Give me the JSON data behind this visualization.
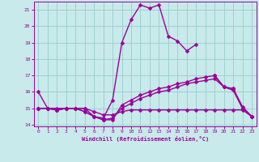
{
  "title": "",
  "xlabel": "Windchill (Refroidissement éolien,°C)",
  "x": [
    0,
    1,
    2,
    3,
    4,
    5,
    6,
    7,
    8,
    9,
    10,
    11,
    12,
    13,
    14,
    15,
    16,
    17,
    18,
    19,
    20,
    21,
    22,
    23
  ],
  "line1": [
    16,
    15,
    15,
    15,
    15,
    15,
    14.5,
    14.4,
    15.5,
    19,
    20.4,
    21.3,
    21.1,
    21.3,
    19.4,
    19.1,
    18.5,
    18.9,
    null,
    17,
    16.3,
    16.2,
    15,
    14.5
  ],
  "line2": [
    15,
    15,
    14.9,
    15,
    15,
    14.8,
    14.5,
    14.3,
    14.3,
    15.2,
    15.5,
    15.8,
    16.0,
    16.2,
    16.3,
    16.5,
    16.6,
    16.8,
    16.9,
    17.0,
    16.3,
    16.2,
    15.1,
    14.5
  ],
  "line3": [
    15,
    15,
    14.9,
    15,
    15,
    14.8,
    14.5,
    14.3,
    14.4,
    15.0,
    15.3,
    15.6,
    15.8,
    16.0,
    16.1,
    16.3,
    16.5,
    16.6,
    16.7,
    16.8,
    16.3,
    16.1,
    15.0,
    14.5
  ],
  "line4": [
    15,
    15,
    14.9,
    15,
    15,
    15,
    14.8,
    14.6,
    14.6,
    14.8,
    14.9,
    14.9,
    14.9,
    14.9,
    14.9,
    14.9,
    14.9,
    14.9,
    14.9,
    14.9,
    14.9,
    14.9,
    14.9,
    14.5
  ],
  "ylim": [
    13.9,
    21.5
  ],
  "xlim": [
    -0.5,
    23.5
  ],
  "yticks": [
    14,
    15,
    16,
    17,
    18,
    19,
    20,
    21
  ],
  "xticks": [
    0,
    1,
    2,
    3,
    4,
    5,
    6,
    7,
    8,
    9,
    10,
    11,
    12,
    13,
    14,
    15,
    16,
    17,
    18,
    19,
    20,
    21,
    22,
    23
  ],
  "line_color": "#990099",
  "bg_color": "#c8eaea",
  "grid_color": "#99cccc",
  "markersize": 2.5,
  "linewidth": 1.0
}
